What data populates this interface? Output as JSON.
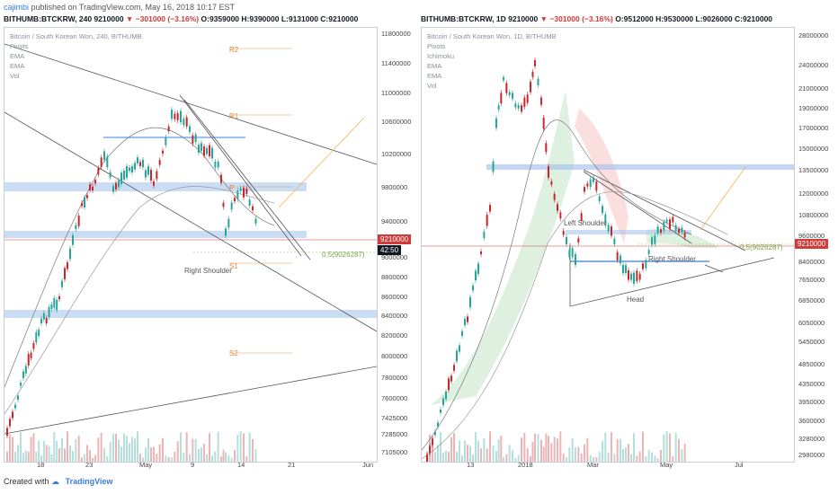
{
  "header": {
    "author": "cajimbi",
    "published": "published on TradingView.com, May 16, 2018 10:17 EST"
  },
  "left": {
    "symbol": "BITHUMB:BTCKRW, 240",
    "price": "9210000",
    "change": "▼ −301000 (−3.16%)",
    "ohlc": "O:9359000 H:9390000 L:9131000 C:9210000",
    "legend": [
      "Bitcoin / South Korean Won, 240, BITHUMB",
      "Pivots",
      "EMA",
      "EMA",
      "Vol"
    ],
    "yticks": [
      "11800000",
      "11400000",
      "11000000",
      "10600000",
      "10200000",
      "9800000",
      "9400000",
      "9000000",
      "8800000",
      "8600000",
      "8400000",
      "8200000",
      "8000000",
      "7800000",
      "7600000",
      "7425000",
      "7285000",
      "7105000"
    ],
    "xticks": [
      "18",
      "23",
      "May",
      "9",
      "14",
      "21",
      "Jun"
    ],
    "price_tag": "9210000",
    "time_tag": "42:50",
    "labels": {
      "r2": "R2",
      "r1": "R1",
      "p": "P",
      "s1": "S1",
      "s2": "S2",
      "fib": "0.5(9026287)",
      "shoulder": "Right Shoulder"
    }
  },
  "right": {
    "symbol": "BITHUMB:BTCKRW, 1D",
    "price": "9210000",
    "change": "▼ −301000 (−3.16%)",
    "ohlc": "O:9512000 H:9530000 L:9026000 C:9210000",
    "legend": [
      "Bitcoin / South Korean Won, 1D, BITHUMB",
      "Pivots",
      "Ichimoku",
      "EMA",
      "EMA",
      "Vol"
    ],
    "yticks": [
      "28000000",
      "24000000",
      "21000000",
      "19000000",
      "17000000",
      "15000000",
      "13500000",
      "12000000",
      "10800000",
      "9600000",
      "8400000",
      "7650000",
      "6850000",
      "6050000",
      "5450000",
      "4850000",
      "4350000",
      "3950000",
      "3600000",
      "3280000",
      "2980000"
    ],
    "xticks": [
      "13",
      "2018",
      "Mar",
      "May",
      "Jul"
    ],
    "price_tag": "9210000",
    "labels": {
      "ls": "Left Shoulder",
      "rs": "Right Shoulder",
      "head": "Head",
      "fib": "0.5(9026287)"
    }
  },
  "footer": {
    "created": "Created with",
    "brand": "TradingView"
  },
  "colors": {
    "up": "#26a69a",
    "down": "#c8272b",
    "band": "#a9c4ee",
    "accent": "#3b7ddd"
  }
}
